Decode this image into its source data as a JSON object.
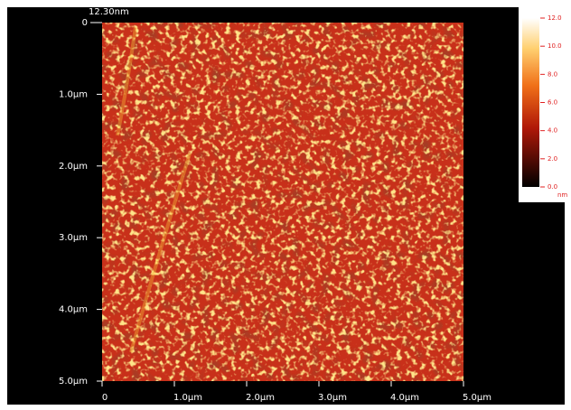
{
  "scan_height": "12.30nm",
  "y_axis": {
    "labels": [
      "0",
      "1.0µm",
      "2.0µm",
      "3.0µm",
      "4.0µm",
      "5.0µm"
    ]
  },
  "x_axis": {
    "labels": [
      "0",
      "1.0µm",
      "2.0µm",
      "3.0µm",
      "4.0µm",
      "5.0µm"
    ]
  },
  "colorbar": {
    "labels": [
      "12.0",
      "10.0",
      "8.0",
      "6.0",
      "4.0",
      "2.0",
      "0.0"
    ],
    "unit": "nm"
  }
}
